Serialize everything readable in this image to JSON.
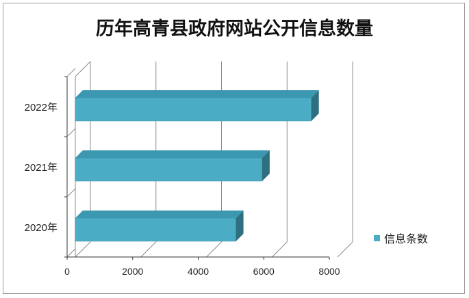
{
  "chart_data": {
    "type": "bar",
    "orientation": "horizontal",
    "style": "3d",
    "title": "历年高青县政府网站公开信息数量",
    "categories": [
      "2020年",
      "2021年",
      "2022年"
    ],
    "series": [
      {
        "name": "信息条数",
        "values": [
          4900,
          5700,
          7200
        ],
        "color": "#4bacc6"
      }
    ],
    "xlim": [
      0,
      8000
    ],
    "xticks": [
      0,
      2000,
      4000,
      6000,
      8000
    ],
    "grid": true,
    "legend": "right"
  }
}
